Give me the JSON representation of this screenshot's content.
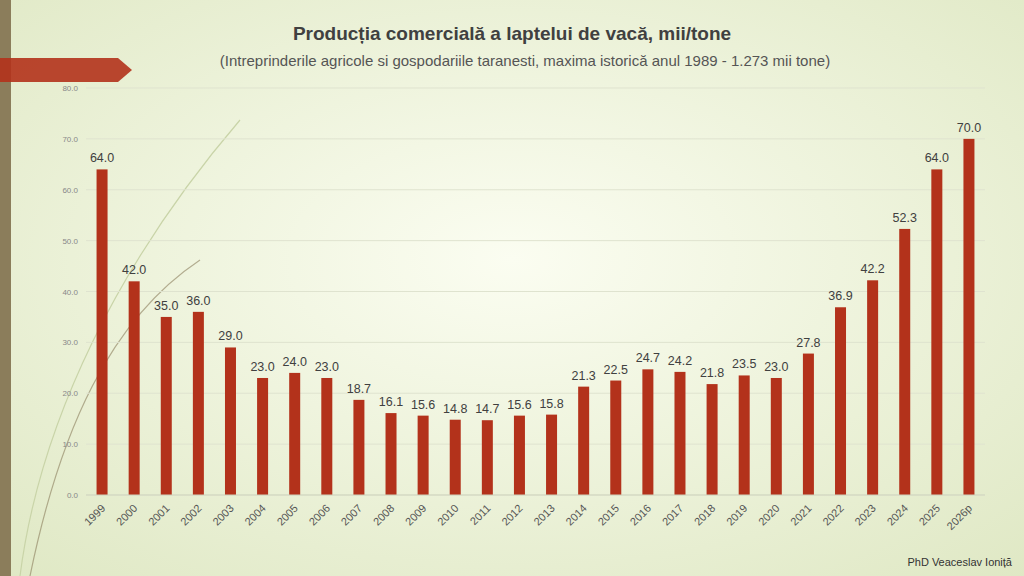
{
  "chart_data": {
    "type": "bar",
    "title": "Producția comercială a laptelui de vacă, mii/tone",
    "subtitle": "(Intreprinderile agricole si gospodariile taranesti, maxima istorică anul 1989 - 1.273 mii tone)",
    "annotations": [
      "PhD Veaceslav Ioniță"
    ],
    "categories": [
      "1999",
      "2000",
      "2001",
      "2002",
      "2003",
      "2004",
      "2005",
      "2006",
      "2007",
      "2008",
      "2009",
      "2010",
      "2011",
      "2012",
      "2013",
      "2014",
      "2015",
      "2016",
      "2017",
      "2018",
      "2019",
      "2020",
      "2021",
      "2022",
      "2023",
      "2024",
      "2025",
      "2026p"
    ],
    "values": [
      64.0,
      42.0,
      35.0,
      36.0,
      29.0,
      23.0,
      24.0,
      23.0,
      18.7,
      16.1,
      15.6,
      14.8,
      14.7,
      15.6,
      15.8,
      21.3,
      22.5,
      24.7,
      24.2,
      21.8,
      23.5,
      23.0,
      27.8,
      36.9,
      42.2,
      52.3,
      64.0,
      70.0
    ],
    "value_labels": [
      "64.0",
      "42.0",
      "35.0",
      "36.0",
      "29.0",
      "23.0",
      "24.0",
      "23.0",
      "18.7",
      "16.1",
      "15.6",
      "14.8",
      "14.7",
      "15.6",
      "15.8",
      "21.3",
      "22.5",
      "24.7",
      "24.2",
      "21.8",
      "23.5",
      "23.0",
      "27.8",
      "36.9",
      "42.2",
      "52.3",
      "64.0",
      "70.0"
    ],
    "color": "#b3321b",
    "ylim": [
      0,
      80
    ],
    "yticks": [
      {
        "value": 0,
        "label": "0.0"
      },
      {
        "value": 10,
        "label": "10.0"
      },
      {
        "value": 20,
        "label": "20.0"
      },
      {
        "value": 30,
        "label": "30.0"
      },
      {
        "value": 40,
        "label": "40.0"
      },
      {
        "value": 50,
        "label": "50.0"
      },
      {
        "value": 60,
        "label": "60.0"
      },
      {
        "value": 70,
        "label": "70.0"
      },
      {
        "value": 80,
        "label": "80.0"
      }
    ],
    "grid": true,
    "data_labels": true
  }
}
